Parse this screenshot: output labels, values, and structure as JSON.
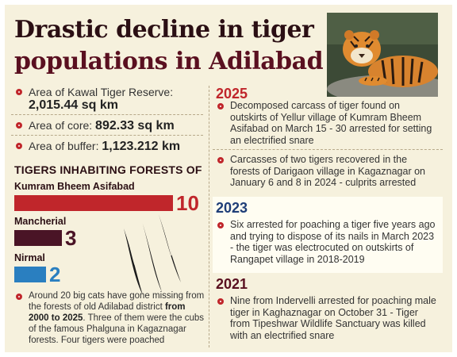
{
  "title": {
    "line1": "Drastic decline in tiger",
    "line2": "populations in Adilabad"
  },
  "stats": [
    {
      "label": "Area of Kawal Tiger Reserve:",
      "value": "2,015.44 sq km"
    },
    {
      "label": "Area of core:",
      "value": "892.33 sq km"
    },
    {
      "label": "Area of buffer:",
      "value": "1,123.212 km"
    }
  ],
  "forests": {
    "heading": "TIGERS INHABITING FORESTS OF",
    "items": [
      {
        "name": "Kumram Bheem Asifabad",
        "count": 10,
        "color": "#c0262b"
      },
      {
        "name": "Mancherial",
        "count": 3,
        "color": "#4a1426"
      },
      {
        "name": "Nirmal",
        "count": 2,
        "color": "#2a7fc0"
      }
    ]
  },
  "footnote": {
    "text1": "Around 20 big cats have gone missing from the forests of old Adilabad district ",
    "bold": "from 2000 to 2025",
    "text2": ". Three of them were the cubs of the famous Phalguna in Kagaznagar forests. Four tigers were poached"
  },
  "timeline": [
    {
      "year": "2025",
      "color": "#c0262b",
      "items": [
        "Decomposed carcass of tiger found on outskirts of Yellur village of Kumram Bheem Asifabad on March 15 - 30  arrested for setting an electrified snare",
        "Carcasses of two tigers recovered in the forests of Darigaon village in Kagaznagar  on January 6 and 8 in 2024 - culprits arrested"
      ]
    },
    {
      "year": "2023",
      "color": "#1f3e78",
      "items": [
        "Six arrested for poaching a tiger five years ago and trying to dispose of its nails in March 2023 - the tiger was electrocuted on outskirts of Rangapet village in 2018-2019"
      ]
    },
    {
      "year": "2021",
      "color": "#5a1020",
      "items": [
        "Nine from Indervelli arrested for poaching male tiger in Kaghaznagar on October 31 - Tiger from Tipeshwar Wildlife Sanctuary was killed with an electrified snare"
      ]
    }
  ]
}
